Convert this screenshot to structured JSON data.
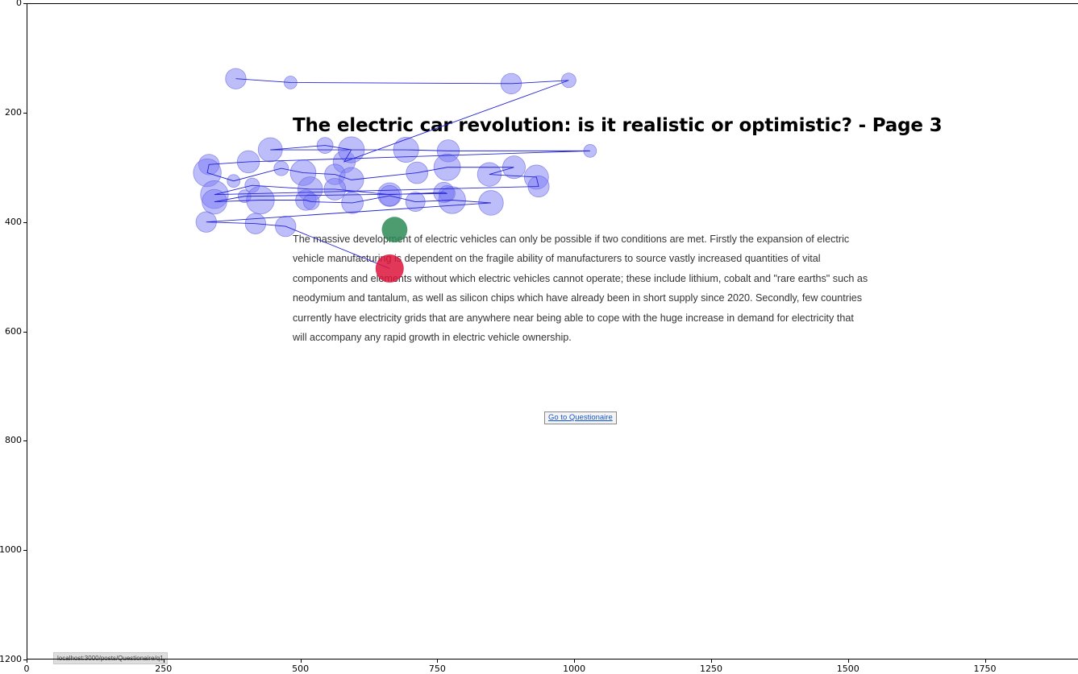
{
  "page": {
    "title": "The electric car revolution: is it realistic or optimistic? - Page 3",
    "body": "The massive development of electric vehicles can only be possible if two conditions are met. Firstly the expansion of electric vehicle manufacturing is dependent on the fragile ability of manufacturers to source vastly increased quantities of vital components and elements without which electric vehicles cannot operate; these include lithium, cobalt and \"rare earths\" such as neodymium and tantalum, as well as silicon chips which have already been in short supply since 2020. Secondly, few countries currently have electricity grids that are anywhere near being able to cope with the huge increase in demand for electricity that will accompany any rapid growth in electric vehicle ownership.",
    "questionnaire_link": "Go to Questionaire",
    "status_url": "localhost:3000/posts/Questionaire/q1"
  },
  "chart_data": {
    "type": "scatter",
    "x_ticks": [
      "0",
      "250",
      "500",
      "750",
      "1000",
      "1250",
      "1500",
      "1750"
    ],
    "y_ticks": [
      "0",
      "200",
      "400",
      "600",
      "800",
      "1000",
      "1200"
    ],
    "xlim": [
      0,
      1920
    ],
    "ylim": [
      1200,
      0
    ],
    "colors": {
      "fixation": "#7b7bf5",
      "saccade": "#2323d8",
      "start": "#2e8b57",
      "end": "#dc143c"
    },
    "fixations": [
      {
        "x": 382,
        "y": 138,
        "d": 180
      },
      {
        "x": 482,
        "y": 145,
        "d": 70
      },
      {
        "x": 885,
        "y": 147,
        "d": 180
      },
      {
        "x": 990,
        "y": 141,
        "d": 90
      },
      {
        "x": 580,
        "y": 290,
        "d": 210
      },
      {
        "x": 593,
        "y": 268,
        "d": 290
      },
      {
        "x": 545,
        "y": 260,
        "d": 110
      },
      {
        "x": 445,
        "y": 268,
        "d": 250
      },
      {
        "x": 693,
        "y": 268,
        "d": 270
      },
      {
        "x": 770,
        "y": 270,
        "d": 210
      },
      {
        "x": 1029,
        "y": 270,
        "d": 70
      },
      {
        "x": 405,
        "y": 290,
        "d": 210
      },
      {
        "x": 333,
        "y": 295,
        "d": 180
      },
      {
        "x": 330,
        "y": 310,
        "d": 330
      },
      {
        "x": 378,
        "y": 325,
        "d": 70
      },
      {
        "x": 465,
        "y": 302,
        "d": 90
      },
      {
        "x": 505,
        "y": 310,
        "d": 280
      },
      {
        "x": 563,
        "y": 313,
        "d": 180
      },
      {
        "x": 593,
        "y": 323,
        "d": 260
      },
      {
        "x": 713,
        "y": 310,
        "d": 200
      },
      {
        "x": 768,
        "y": 300,
        "d": 300
      },
      {
        "x": 845,
        "y": 313,
        "d": 240
      },
      {
        "x": 890,
        "y": 300,
        "d": 220
      },
      {
        "x": 931,
        "y": 318,
        "d": 250
      },
      {
        "x": 935,
        "y": 335,
        "d": 190
      },
      {
        "x": 343,
        "y": 350,
        "d": 330
      },
      {
        "x": 412,
        "y": 333,
        "d": 90
      },
      {
        "x": 518,
        "y": 340,
        "d": 260
      },
      {
        "x": 563,
        "y": 340,
        "d": 200
      },
      {
        "x": 398,
        "y": 353,
        "d": 70
      },
      {
        "x": 343,
        "y": 363,
        "d": 260
      },
      {
        "x": 427,
        "y": 360,
        "d": 330
      },
      {
        "x": 510,
        "y": 360,
        "d": 180
      },
      {
        "x": 520,
        "y": 363,
        "d": 110
      },
      {
        "x": 595,
        "y": 365,
        "d": 200
      },
      {
        "x": 663,
        "y": 350,
        "d": 240
      },
      {
        "x": 663,
        "y": 352,
        "d": 180
      },
      {
        "x": 710,
        "y": 363,
        "d": 160
      },
      {
        "x": 762,
        "y": 346,
        "d": 180
      },
      {
        "x": 768,
        "y": 348,
        "d": 110
      },
      {
        "x": 777,
        "y": 360,
        "d": 310
      },
      {
        "x": 848,
        "y": 365,
        "d": 260
      },
      {
        "x": 328,
        "y": 400,
        "d": 180
      },
      {
        "x": 418,
        "y": 403,
        "d": 180
      },
      {
        "x": 473,
        "y": 408,
        "d": 180
      }
    ],
    "path": [
      [
        382,
        138
      ],
      [
        482,
        145
      ],
      [
        885,
        147
      ],
      [
        990,
        141
      ],
      [
        580,
        290
      ],
      [
        593,
        268
      ],
      [
        545,
        260
      ],
      [
        445,
        268
      ],
      [
        593,
        268
      ],
      [
        693,
        268
      ],
      [
        770,
        270
      ],
      [
        1029,
        270
      ],
      [
        405,
        290
      ],
      [
        333,
        295
      ],
      [
        330,
        310
      ],
      [
        378,
        325
      ],
      [
        465,
        302
      ],
      [
        505,
        310
      ],
      [
        563,
        313
      ],
      [
        593,
        323
      ],
      [
        713,
        310
      ],
      [
        768,
        300
      ],
      [
        890,
        300
      ],
      [
        845,
        313
      ],
      [
        931,
        318
      ],
      [
        935,
        335
      ],
      [
        343,
        350
      ],
      [
        412,
        333
      ],
      [
        518,
        340
      ],
      [
        563,
        340
      ],
      [
        663,
        350
      ],
      [
        762,
        346
      ],
      [
        768,
        348
      ],
      [
        398,
        353
      ],
      [
        343,
        363
      ],
      [
        427,
        360
      ],
      [
        510,
        360
      ],
      [
        520,
        363
      ],
      [
        595,
        365
      ],
      [
        663,
        352
      ],
      [
        710,
        363
      ],
      [
        777,
        360
      ],
      [
        848,
        365
      ],
      [
        328,
        400
      ],
      [
        418,
        403
      ],
      [
        473,
        408
      ],
      [
        663,
        485
      ]
    ],
    "start_point": {
      "x": 672,
      "y": 414,
      "d": 280
    },
    "end_point": {
      "x": 663,
      "y": 485,
      "d": 340
    }
  }
}
